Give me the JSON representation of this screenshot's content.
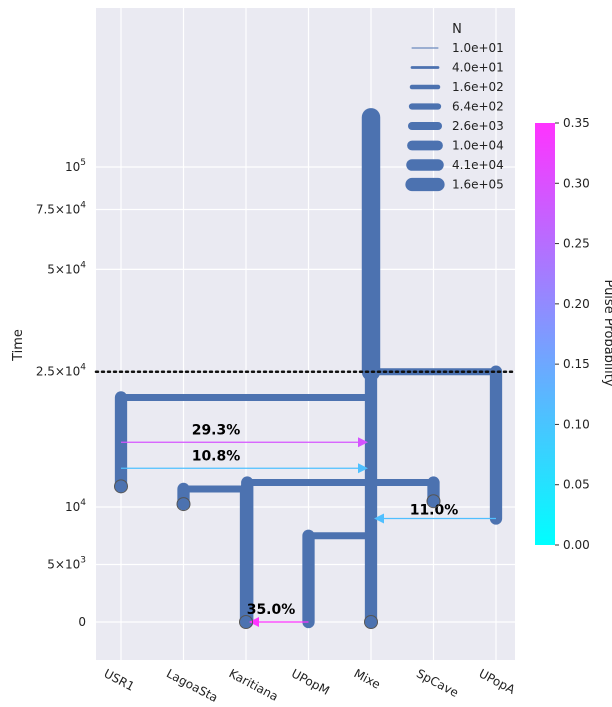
{
  "chart_data": {
    "type": "demographic-tree",
    "ylabel": "Time",
    "y_ticks": [
      {
        "value": 0,
        "label": "0"
      },
      {
        "value": 5000,
        "label": "5×10^3"
      },
      {
        "value": 10000,
        "label": "10^4"
      },
      {
        "value": 25000,
        "label": "2.5×10^4"
      },
      {
        "value": 50000,
        "label": "5×10^4"
      },
      {
        "value": 75000,
        "label": "7.5×10^4"
      },
      {
        "value": 100000,
        "label": "10^5"
      }
    ],
    "categories": [
      "USR1",
      "LagoaSta",
      "Karitiana",
      "UPopM",
      "Mixe",
      "SpCave",
      "UPopA"
    ],
    "threshold_time": 25000,
    "branches": [
      {
        "name": "Mixe-root",
        "x": 4,
        "y0": 25000,
        "y1": 140000,
        "size": 10000
      },
      {
        "name": "UPopA",
        "x": 6,
        "y0": 9000,
        "y1": 25000,
        "size": 640
      },
      {
        "name": "USR1",
        "x": 0,
        "y0": 11500,
        "y1": 21000,
        "size": 640
      },
      {
        "name": "Mixe",
        "x": 4,
        "y0": 0,
        "y1": 25000,
        "size": 640
      },
      {
        "name": "LagoaSta",
        "x": 1,
        "y0": 10200,
        "y1": 11300,
        "size": 640
      },
      {
        "name": "Karitiana",
        "x": 2,
        "y0": 0,
        "y1": 11300,
        "size": 640
      },
      {
        "name": "Karitiana-anc",
        "x": 2.02,
        "y0": 0,
        "y1": 11800,
        "size": 640
      },
      {
        "name": "SpCave",
        "x": 5,
        "y0": 10400,
        "y1": 11800,
        "size": 640
      },
      {
        "name": "UPopM",
        "x": 3,
        "y0": 0,
        "y1": 7500,
        "size": 640
      }
    ],
    "joins": [
      {
        "y": 25000,
        "x0": 4,
        "x1": 6
      },
      {
        "y": 21000,
        "x0": 0,
        "x1": 4
      },
      {
        "y": 11800,
        "x0": 2,
        "x1": 5
      },
      {
        "y": 11300,
        "x0": 1,
        "x1": 2
      },
      {
        "y": 7500,
        "x0": 3,
        "x1": 4
      }
    ],
    "samples": [
      {
        "x": 0,
        "y": 11500
      },
      {
        "x": 1,
        "y": 10200
      },
      {
        "x": 2,
        "y": 0
      },
      {
        "x": 4,
        "y": 0
      },
      {
        "x": 5,
        "y": 10400
      }
    ],
    "pulses": [
      {
        "from": 0,
        "to": 4,
        "time": 15500,
        "proportion": 0.293,
        "label": "29.3%"
      },
      {
        "from": 0,
        "to": 4,
        "time": 13000,
        "proportion": 0.108,
        "label": "10.8%"
      },
      {
        "from": 6,
        "to": 4,
        "time": 9000,
        "proportion": 0.11,
        "label": "11.0%"
      },
      {
        "from": 3,
        "to": 2,
        "time": 0,
        "proportion": 0.35,
        "label": "35.0%"
      }
    ],
    "size_legend": {
      "title": "N",
      "entries": [
        "1.0e+01",
        "4.0e+01",
        "1.6e+02",
        "6.4e+02",
        "2.6e+03",
        "1.0e+04",
        "4.1e+04",
        "1.6e+05"
      ]
    },
    "colorbar": {
      "label": "Pulse Probability",
      "min": 0,
      "max": 0.35,
      "ticks": [
        "0.00",
        "0.05",
        "0.10",
        "0.15",
        "0.20",
        "0.25",
        "0.30",
        "0.35"
      ],
      "color_low": "#00ffff",
      "color_high": "#ff33ff"
    },
    "grid": true,
    "colors": {
      "branch": "#4c72b0",
      "background": "#eaeaf2",
      "grid": "#ffffff"
    }
  }
}
